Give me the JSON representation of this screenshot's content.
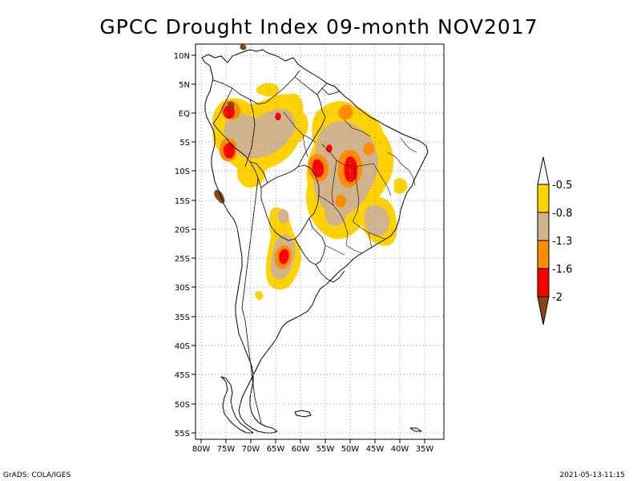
{
  "title": "GPCC Drought Index 09-month NOV2017",
  "footer": {
    "left": "GrADS: COLA/IGES",
    "right": "2021-05-13-11:15"
  },
  "map": {
    "lon_labels": [
      "80W",
      "75W",
      "70W",
      "65W",
      "60W",
      "55W",
      "50W",
      "45W",
      "40W",
      "35W"
    ],
    "lat_labels": [
      "10N",
      "5N",
      "EQ",
      "5S",
      "10S",
      "15S",
      "20S",
      "25S",
      "30S",
      "35S",
      "40S",
      "45S",
      "50S",
      "55S"
    ]
  },
  "legend": {
    "labels": [
      "-0.5",
      "-0.8",
      "-1.3",
      "-1.6",
      "-2"
    ],
    "colors": [
      "#ffffff",
      "#ffd200",
      "#d2b48c",
      "#ff8c00",
      "#ff0000",
      "#8b4513"
    ]
  },
  "colors": {
    "drought_moderate": "#ffd200",
    "drought_severe": "#d2b48c",
    "drought_high": "#ff8c00",
    "drought_extreme": "#ff0000",
    "drought_exceptional": "#8b4513"
  }
}
